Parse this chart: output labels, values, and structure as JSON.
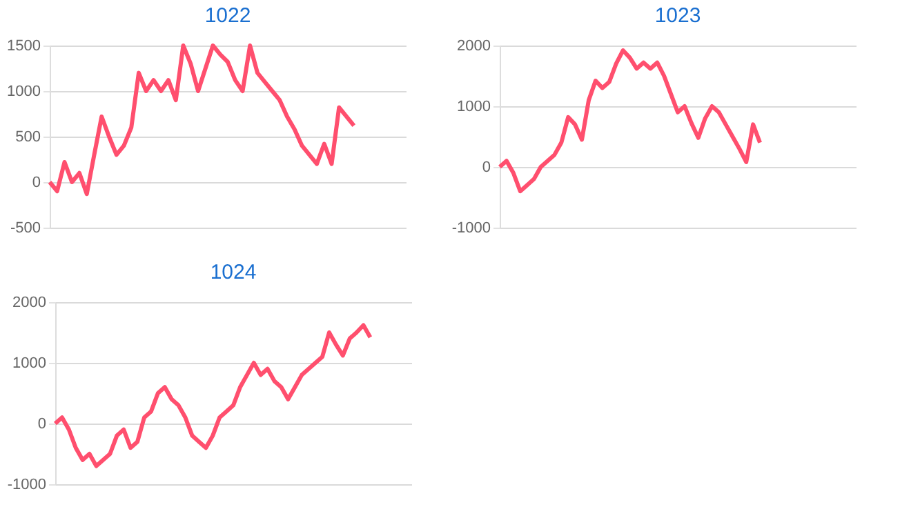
{
  "chart_data": [
    {
      "type": "line",
      "title": "1022",
      "categories": [
        null,
        null,
        null,
        null,
        null,
        null,
        null,
        null,
        null,
        null,
        null,
        null,
        null,
        null,
        null,
        null,
        null,
        null,
        null,
        null,
        null,
        null,
        null,
        null,
        null,
        null,
        null,
        null,
        null,
        null,
        null,
        null,
        null,
        null,
        null,
        null,
        null,
        null,
        null,
        null,
        null,
        null,
        null,
        null,
        null,
        null,
        null,
        null,
        null
      ],
      "series": [
        {
          "color": "#ff4f6e",
          "values": [
            0,
            -100,
            220,
            0,
            100,
            -130,
            300,
            720,
            500,
            300,
            400,
            600,
            1200,
            1000,
            1120,
            1000,
            1120,
            900,
            1500,
            1300,
            1000,
            1250,
            1500,
            1400,
            1320,
            1120,
            1000,
            1500,
            1200,
            1100,
            1000,
            900,
            720,
            580,
            400,
            300,
            200,
            420,
            200,
            820,
            720,
            620,
            null,
            null,
            null,
            null,
            null,
            null,
            null
          ]
        }
      ],
      "ylim": [
        -500,
        1500
      ],
      "yticks": [
        -500,
        0,
        500,
        1000,
        1500
      ],
      "grid": "y",
      "tick_labels": "y",
      "legend": false
    },
    {
      "type": "line",
      "title": "1023",
      "categories": [
        null,
        null,
        null,
        null,
        null,
        null,
        null,
        null,
        null,
        null,
        null,
        null,
        null,
        null,
        null,
        null,
        null,
        null,
        null,
        null,
        null,
        null,
        null,
        null,
        null,
        null,
        null,
        null,
        null,
        null,
        null,
        null,
        null,
        null,
        null,
        null,
        null,
        null,
        null,
        null,
        null,
        null,
        null,
        null,
        null,
        null,
        null,
        null,
        null,
        null,
        null,
        null,
        null
      ],
      "series": [
        {
          "color": "#ff4f6e",
          "values": [
            0,
            100,
            -100,
            -400,
            -300,
            -200,
            0,
            100,
            200,
            400,
            820,
            700,
            450,
            1100,
            1420,
            1300,
            1400,
            1700,
            1920,
            1800,
            1620,
            1720,
            1620,
            1720,
            1500,
            1200,
            900,
            1000,
            720,
            480,
            800,
            1000,
            900,
            700,
            500,
            300,
            80,
            700,
            400,
            null,
            null,
            null,
            null,
            null,
            null,
            null,
            null,
            null,
            null,
            null,
            null,
            null,
            null
          ]
        }
      ],
      "ylim": [
        -1000,
        2000
      ],
      "yticks": [
        -1000,
        0,
        1000,
        2000
      ],
      "grid": "y",
      "tick_labels": "y",
      "legend": false
    },
    {
      "type": "line",
      "title": "1024",
      "categories": [
        null,
        null,
        null,
        null,
        null,
        null,
        null,
        null,
        null,
        null,
        null,
        null,
        null,
        null,
        null,
        null,
        null,
        null,
        null,
        null,
        null,
        null,
        null,
        null,
        null,
        null,
        null,
        null,
        null,
        null,
        null,
        null,
        null,
        null,
        null,
        null,
        null,
        null,
        null,
        null,
        null,
        null,
        null,
        null,
        null,
        null,
        null,
        null,
        null,
        null,
        null,
        null,
        null
      ],
      "series": [
        {
          "color": "#ff4f6e",
          "values": [
            0,
            100,
            -100,
            -400,
            -600,
            -500,
            -700,
            -600,
            -500,
            -200,
            -100,
            -400,
            -300,
            100,
            200,
            500,
            600,
            400,
            300,
            100,
            -200,
            -300,
            -400,
            -200,
            100,
            200,
            300,
            600,
            800,
            1000,
            800,
            900,
            700,
            600,
            400,
            600,
            800,
            900,
            1000,
            1100,
            1500,
            1300,
            1120,
            1400,
            1500,
            1620,
            1420,
            null,
            null,
            null,
            null,
            null,
            null
          ]
        }
      ],
      "ylim": [
        -1000,
        2000
      ],
      "yticks": [
        -1000,
        0,
        1000,
        2000
      ],
      "grid": "y",
      "tick_labels": "y",
      "legend": false
    }
  ]
}
